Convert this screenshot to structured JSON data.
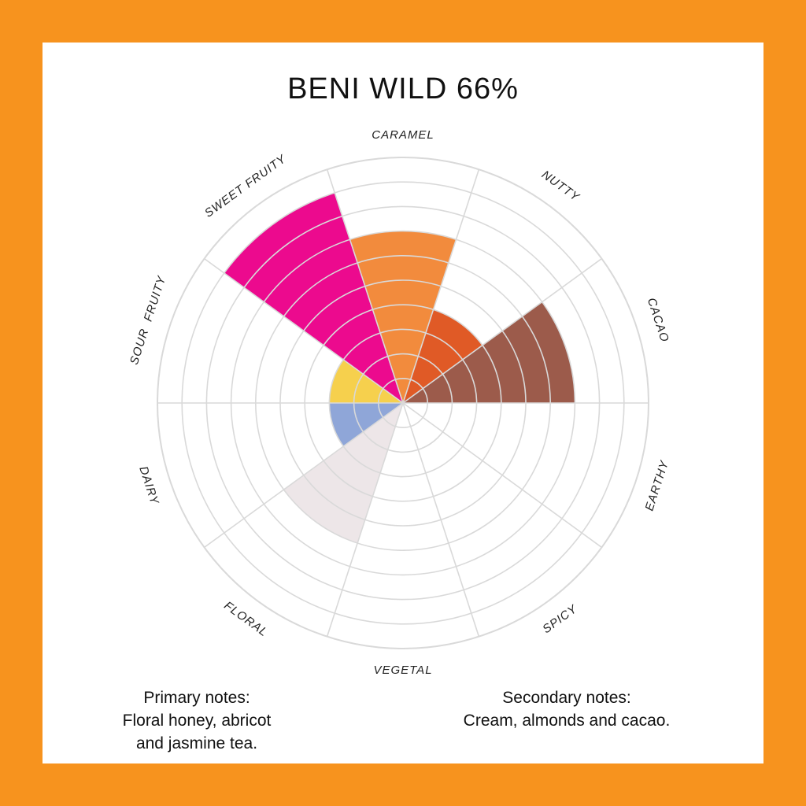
{
  "title": "BENI WILD 66%",
  "chart_data": {
    "type": "radial-bar",
    "title": "BENI WILD 66%",
    "scale_max": 10,
    "categories": [
      {
        "label": "CARAMEL",
        "value": 7,
        "color": "#F28B3D"
      },
      {
        "label": "NUTTY",
        "value": 4,
        "color": "#E05A26"
      },
      {
        "label": "CACAO",
        "value": 7,
        "color": "#9C5B4B"
      },
      {
        "label": "EARTHY",
        "value": 0,
        "color": "#cccccc"
      },
      {
        "label": "SPICY",
        "value": 0,
        "color": "#cccccc"
      },
      {
        "label": "VEGETAL",
        "value": 0,
        "color": "#cccccc"
      },
      {
        "label": "FLORAL",
        "value": 6,
        "color": "#EDE6E8"
      },
      {
        "label": "DAIRY",
        "value": 3,
        "color": "#8FA6D8"
      },
      {
        "label": "SOUR  FRUITY",
        "value": 3,
        "color": "#F6D04D"
      },
      {
        "label": "SWEET FRUITY",
        "value": 9,
        "color": "#EC0A8E"
      }
    ],
    "grid": true
  },
  "notes": {
    "primary": {
      "lines": [
        "Primary notes:",
        "Floral honey, abricot",
        "and jasmine tea."
      ]
    },
    "secondary": {
      "lines": [
        "Secondary notes:",
        "Cream, almonds and cacao."
      ]
    }
  }
}
